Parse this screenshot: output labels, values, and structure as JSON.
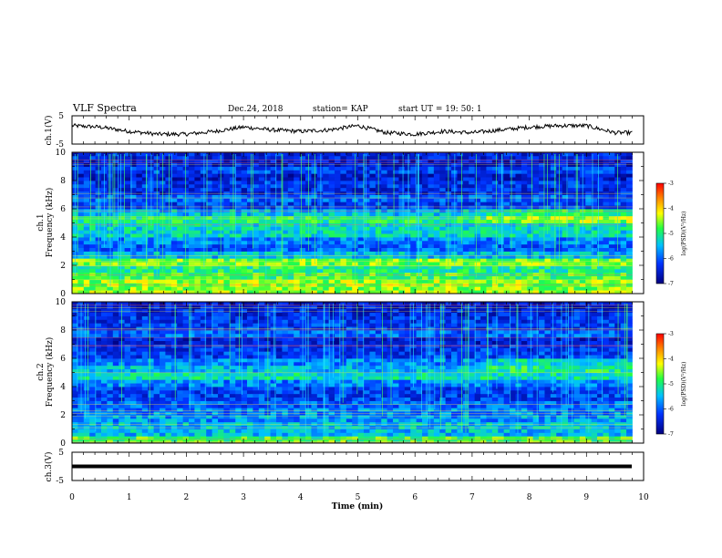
{
  "header": {
    "title": "VLF Spectra",
    "date": "Dec.24, 2018",
    "station": "station= KAP",
    "start": "start  UT =   19: 50: 1"
  },
  "panels": {
    "ch1": {
      "ylabel": "ch.1(V)",
      "yticks": [
        "5",
        "-5"
      ]
    },
    "spec1": {
      "ylabel_ch": "ch.1",
      "ylabel_freq": "Frequency (kHz)",
      "yticks": [
        "0",
        "2",
        "4",
        "6",
        "8",
        "10"
      ]
    },
    "spec2": {
      "ylabel_ch": "ch.2",
      "ylabel_freq": "Frequency (kHz)",
      "yticks": [
        "0",
        "2",
        "4",
        "6",
        "8",
        "10"
      ]
    },
    "ch3": {
      "ylabel": "ch.3(V)",
      "yticks": [
        "5",
        "-5"
      ]
    }
  },
  "xaxis": {
    "label": "Time  (min)",
    "ticks": [
      "0",
      "1",
      "2",
      "3",
      "4",
      "5",
      "6",
      "7",
      "8",
      "9",
      "10"
    ]
  },
  "colorbar": {
    "label": "log(PSD)(V²/Hz)",
    "ticks": [
      "-3",
      "-4",
      "-5",
      "-6",
      "-7"
    ],
    "colors": [
      "#ff0000",
      "#ff8800",
      "#ffff00",
      "#22ff44",
      "#00c0ff",
      "#0033ff",
      "#000080"
    ]
  },
  "chart_data": [
    {
      "type": "line",
      "title": "VLF Spectra",
      "ylabel": "ch.1(V)",
      "xlabel": "Time  (min)",
      "xlim": [
        0,
        10
      ],
      "ylim": [
        -5,
        5
      ],
      "x": [
        0,
        0.5,
        1,
        1.5,
        2,
        2.5,
        3,
        3.5,
        4,
        4.5,
        5,
        5.5,
        6,
        6.5,
        7,
        7.5,
        8,
        8.5,
        9,
        9.5,
        9.8
      ],
      "y": [
        1.5,
        1,
        -0.5,
        -1.5,
        -1.5,
        -0.5,
        1,
        0,
        -0.5,
        0,
        1.5,
        -1,
        -1.5,
        -0.5,
        -1,
        0,
        1,
        1.5,
        1.5,
        -1,
        -1
      ]
    },
    {
      "type": "heatmap",
      "ylabel": "ch.1  Frequency (kHz)",
      "xlabel": "Time  (min)",
      "xlim": [
        0,
        10
      ],
      "ylim": [
        0,
        10
      ],
      "zlim": [
        -7,
        -3
      ],
      "zlabel": "log(PSD)(V²/Hz)",
      "freq_bands_khz": [
        0,
        0.5,
        1,
        1.5,
        2,
        2.5,
        3,
        3.5,
        4,
        4.5,
        5,
        5.5,
        6,
        6.5,
        7,
        7.5,
        8,
        8.5,
        9,
        9.5,
        10
      ],
      "mean_log_psd": [
        -4.5,
        -4.5,
        -4.8,
        -5,
        -4.6,
        -5.5,
        -6,
        -5.8,
        -5.3,
        -5.3,
        -5,
        -5.5,
        -6.2,
        -6,
        -6.4,
        -6.3,
        -6.5,
        -6.2,
        -6.5,
        -6.4
      ]
    },
    {
      "type": "heatmap",
      "ylabel": "ch.2  Frequency (kHz)",
      "xlabel": "Time  (min)",
      "xlim": [
        0,
        10
      ],
      "ylim": [
        0,
        10
      ],
      "zlim": [
        -7,
        -3
      ],
      "zlabel": "log(PSD)(V²/Hz)",
      "freq_bands_khz": [
        0,
        0.5,
        1,
        1.5,
        2,
        2.5,
        3,
        3.5,
        4,
        4.5,
        5,
        5.5,
        6,
        6.5,
        7,
        7.5,
        8,
        8.5,
        9,
        9.5,
        10
      ],
      "mean_log_psd": [
        -4.8,
        -5.5,
        -5.5,
        -5.7,
        -5.8,
        -6,
        -6.2,
        -6.2,
        -5.8,
        -5.2,
        -5.5,
        -5.8,
        -6.2,
        -6.3,
        -6.5,
        -6,
        -6.2,
        -6.3,
        -6.4,
        -6.5
      ]
    },
    {
      "type": "line",
      "ylabel": "ch.3(V)",
      "xlabel": "Time  (min)",
      "xlim": [
        0,
        10
      ],
      "ylim": [
        -5,
        5
      ],
      "x": [
        0,
        9.8
      ],
      "y": [
        0,
        0
      ]
    }
  ]
}
